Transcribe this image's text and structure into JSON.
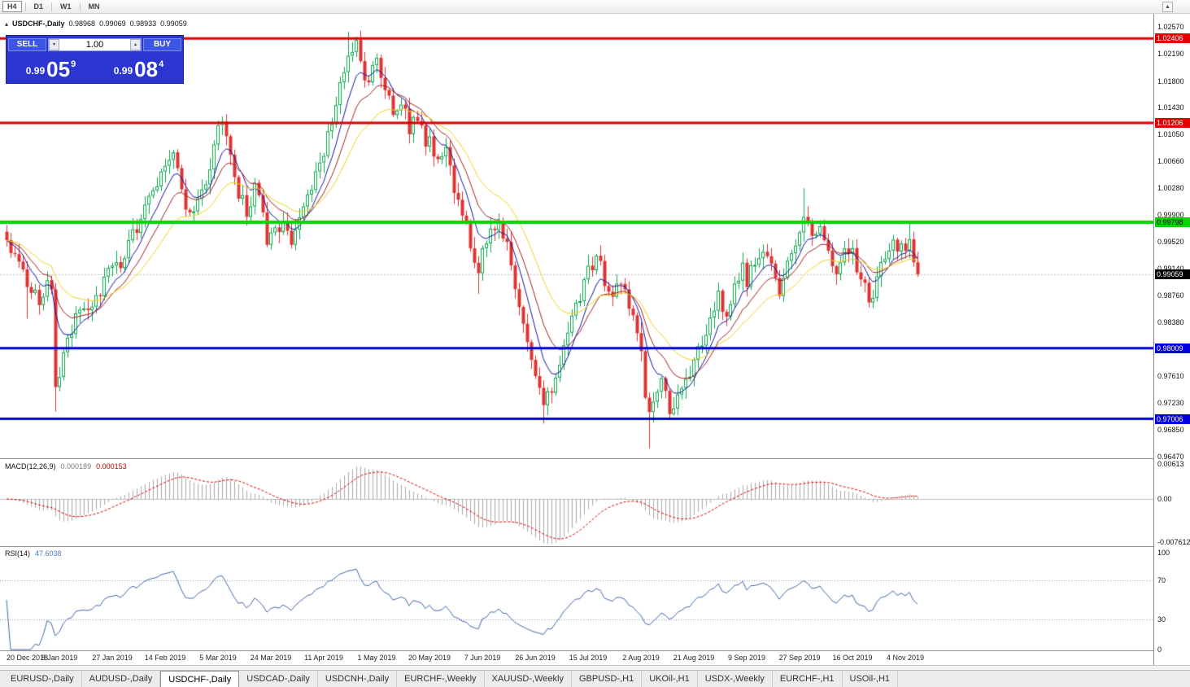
{
  "icons": {
    "panel_toggle_icon": "▴",
    "scroll_up_icon": "▲",
    "spin_down_icon": "▾",
    "spin_up_icon": "▴"
  },
  "toolbar": {
    "timeframes": [
      "H4",
      "D1",
      "W1",
      "MN"
    ],
    "active": "H4"
  },
  "chart_header": {
    "symbol": "USDCHF-,Daily",
    "open": "0.98968",
    "high": "0.99069",
    "low": "0.98933",
    "close": "0.99059"
  },
  "trade_panel": {
    "sell_label": "SELL",
    "buy_label": "BUY",
    "lot_value": "1.00",
    "sell_price": {
      "prefix": "0.99",
      "big": "05",
      "sup": "9"
    },
    "buy_price": {
      "prefix": "0.99",
      "big": "08",
      "sup": "4"
    }
  },
  "chart_data": {
    "type": "candlestick",
    "title": "USDCHF-,Daily",
    "ohlc_display": {
      "open": "0.98968",
      "high": "0.99069",
      "low": "0.98933",
      "close": "0.99059"
    },
    "n_candles": 225,
    "last_close": 0.99059,
    "anchors": [
      [
        0,
        0.9952
      ],
      [
        2,
        0.9935
      ],
      [
        4,
        0.9902
      ],
      [
        6,
        0.9878
      ],
      [
        8,
        0.9868
      ],
      [
        10,
        0.9898
      ],
      [
        11,
        0.9886
      ],
      [
        12,
        0.9738
      ],
      [
        13,
        0.9768
      ],
      [
        15,
        0.9812
      ],
      [
        17,
        0.9845
      ],
      [
        19,
        0.9862
      ],
      [
        21,
        0.985
      ],
      [
        23,
        0.9882
      ],
      [
        25,
        0.9908
      ],
      [
        26,
        0.9922
      ],
      [
        28,
        0.9908
      ],
      [
        30,
        0.9945
      ],
      [
        32,
        0.9975
      ],
      [
        34,
        0.9998
      ],
      [
        36,
        1.0022
      ],
      [
        38,
        1.0052
      ],
      [
        39,
        1.0062
      ],
      [
        41,
        1.0072
      ],
      [
        43,
        1.0028
      ],
      [
        45,
        0.9988
      ],
      [
        47,
        1.0018
      ],
      [
        49,
        1.0042
      ],
      [
        51,
        1.0085
      ],
      [
        52,
        1.0108
      ],
      [
        53,
        1.0115
      ],
      [
        55,
        1.0068
      ],
      [
        57,
        1.0022
      ],
      [
        59,
        0.9998
      ],
      [
        61,
        1.0028
      ],
      [
        63,
        0.9992
      ],
      [
        64,
        0.9948
      ],
      [
        66,
        0.9962
      ],
      [
        68,
        0.9978
      ],
      [
        70,
        0.9952
      ],
      [
        72,
        0.9988
      ],
      [
        74,
        1.0012
      ],
      [
        76,
        1.0045
      ],
      [
        78,
        1.0082
      ],
      [
        80,
        1.0128
      ],
      [
        82,
        1.0178
      ],
      [
        84,
        1.0218
      ],
      [
        86,
        1.0228
      ],
      [
        88,
        1.0178
      ],
      [
        90,
        1.0198
      ],
      [
        91,
        1.0205
      ],
      [
        93,
        1.0168
      ],
      [
        95,
        1.0132
      ],
      [
        97,
        1.0152
      ],
      [
        99,
        1.0112
      ],
      [
        101,
        1.0128
      ],
      [
        103,
        1.0088
      ],
      [
        104,
        1.0098
      ],
      [
        106,
        1.0062
      ],
      [
        108,
        1.0078
      ],
      [
        110,
        1.0032
      ],
      [
        112,
        0.9992
      ],
      [
        114,
        0.9952
      ],
      [
        116,
        0.9908
      ],
      [
        117,
        0.9932
      ],
      [
        119,
        0.9962
      ],
      [
        121,
        0.9988
      ],
      [
        123,
        0.9942
      ],
      [
        125,
        0.9892
      ],
      [
        127,
        0.9842
      ],
      [
        129,
        0.9788
      ],
      [
        130,
        0.9758
      ],
      [
        132,
        0.9718
      ],
      [
        134,
        0.9748
      ],
      [
        136,
        0.9788
      ],
      [
        138,
        0.9822
      ],
      [
        140,
        0.9858
      ],
      [
        142,
        0.9892
      ],
      [
        143,
        0.9908
      ],
      [
        145,
        0.9932
      ],
      [
        147,
        0.9898
      ],
      [
        149,
        0.9872
      ],
      [
        151,
        0.9898
      ],
      [
        153,
        0.9862
      ],
      [
        155,
        0.9822
      ],
      [
        156,
        0.9792
      ],
      [
        157,
        0.9738
      ],
      [
        158,
        0.9708
      ],
      [
        159,
        0.9722
      ],
      [
        161,
        0.9748
      ],
      [
        163,
        0.9712
      ],
      [
        165,
        0.9738
      ],
      [
        167,
        0.9762
      ],
      [
        169,
        0.9778
      ],
      [
        171,
        0.9808
      ],
      [
        173,
        0.9842
      ],
      [
        175,
        0.9872
      ],
      [
        177,
        0.9848
      ],
      [
        179,
        0.9882
      ],
      [
        181,
        0.9912
      ],
      [
        182,
        0.9898
      ],
      [
        184,
        0.9928
      ],
      [
        186,
        0.9948
      ],
      [
        188,
        0.9912
      ],
      [
        190,
        0.9882
      ],
      [
        192,
        0.9918
      ],
      [
        194,
        0.9948
      ],
      [
        195,
        0.9968
      ],
      [
        196,
        0.9992
      ],
      [
        198,
        0.9952
      ],
      [
        200,
        0.9978
      ],
      [
        202,
        0.9942
      ],
      [
        204,
        0.9912
      ],
      [
        206,
        0.9948
      ],
      [
        208,
        0.9932
      ],
      [
        210,
        0.9898
      ],
      [
        212,
        0.9868
      ],
      [
        214,
        0.9898
      ],
      [
        216,
        0.9932
      ],
      [
        218,
        0.9948
      ],
      [
        219,
        0.9942
      ],
      [
        220,
        0.9958
      ],
      [
        221,
        0.9948
      ],
      [
        222,
        0.9962
      ],
      [
        223,
        0.9932
      ],
      [
        224,
        0.9906
      ]
    ],
    "wick_overrides": [
      {
        "i": 5,
        "low": 0.9843
      },
      {
        "i": 12,
        "low": 0.9711
      },
      {
        "i": 52,
        "high": 1.0124
      },
      {
        "i": 84,
        "high": 1.025
      },
      {
        "i": 86,
        "high": 1.0243
      },
      {
        "i": 116,
        "low": 0.9878
      },
      {
        "i": 132,
        "low": 0.9694
      },
      {
        "i": 158,
        "low": 0.9659
      },
      {
        "i": 196,
        "high": 1.0028
      },
      {
        "i": 222,
        "high": 0.9978
      }
    ],
    "colors": {
      "up": "#0ba34e",
      "down": "#dd3333",
      "wick_up": "#0ba34e",
      "wick_down": "#dd3333"
    },
    "moving_averages": [
      {
        "name": "fast",
        "period": 7,
        "color": "#1414a0"
      },
      {
        "name": "medium",
        "period": 13,
        "color": "#a02020"
      },
      {
        "name": "slow",
        "period": 24,
        "color": "#f0d020"
      }
    ],
    "y_ticks": [
      "1.02570",
      "1.02190",
      "1.01800",
      "1.01430",
      "1.01050",
      "1.00660",
      "1.00280",
      "0.99900",
      "0.99520",
      "0.99140",
      "0.98760",
      "0.98380",
      "0.97610",
      "0.97230",
      "0.96850",
      "0.96470"
    ],
    "levels": [
      {
        "price": 1.02406,
        "label": "1.02406",
        "color": "#e00000",
        "text_color": "#ffffff",
        "thickness": 3
      },
      {
        "price": 1.01206,
        "label": "1.01206",
        "color": "#e00000",
        "text_color": "#ffffff",
        "thickness": 3
      },
      {
        "price": 0.99798,
        "label": "0.99798",
        "color": "#00d600",
        "text_color": "#000000",
        "thickness": 4
      },
      {
        "price": 0.98009,
        "label": "0.98009",
        "color": "#0000dd",
        "text_color": "#ffffff",
        "thickness": 3
      },
      {
        "price": 0.97006,
        "label": "0.97006",
        "color": "#0000dd",
        "text_color": "#ffffff",
        "thickness": 3
      }
    ],
    "current_price": {
      "value": 0.99059,
      "label": "0.99059",
      "box_color": "#000000",
      "text_color": "#ffffff"
    },
    "x_labels": [
      {
        "i": 0,
        "text": "20 Dec 2018"
      },
      {
        "i": 13,
        "text": "8 Jan 2019"
      },
      {
        "i": 26,
        "text": "27 Jan 2019"
      },
      {
        "i": 39,
        "text": "14 Feb 2019"
      },
      {
        "i": 52,
        "text": "5 Mar 2019"
      },
      {
        "i": 65,
        "text": "24 Mar 2019"
      },
      {
        "i": 78,
        "text": "11 Apr 2019"
      },
      {
        "i": 91,
        "text": "1 May 2019"
      },
      {
        "i": 104,
        "text": "20 May 2019"
      },
      {
        "i": 117,
        "text": "7 Jun 2019"
      },
      {
        "i": 130,
        "text": "26 Jun 2019"
      },
      {
        "i": 143,
        "text": "15 Jul 2019"
      },
      {
        "i": 156,
        "text": "2 Aug 2019"
      },
      {
        "i": 169,
        "text": "21 Aug 2019"
      },
      {
        "i": 182,
        "text": "9 Sep 2019"
      },
      {
        "i": 195,
        "text": "27 Sep 2019"
      },
      {
        "i": 208,
        "text": "16 Oct 2019"
      },
      {
        "i": 221,
        "text": "4 Nov 2019"
      }
    ],
    "macd": {
      "name": "MACD(12,26,9)",
      "main_value": "0.000189",
      "signal_value": "0.000153",
      "axis_labels": [
        "0.00613",
        "0.00",
        "-0.007612"
      ],
      "axis_values": [
        0.00613,
        0,
        -0.007612
      ],
      "hist_color": "#a8a8a8",
      "signal_color": "#e00000"
    },
    "rsi": {
      "name": "RSI(14)",
      "value": "47.6038",
      "line_color": "#4169aa",
      "level_lines": [
        70,
        30
      ],
      "axis_labels": [
        "100",
        "70",
        "30",
        "0"
      ],
      "axis_values": [
        100,
        70,
        30,
        0
      ]
    }
  },
  "tabs": {
    "items": [
      "EURUSD-,Daily",
      "AUDUSD-,Daily",
      "USDCHF-,Daily",
      "USDCAD-,Daily",
      "USDCNH-,Daily",
      "EURCHF-,Weekly",
      "XAUUSD-,Weekly",
      "GBPUSD-,H1",
      "UKOil-,H1",
      "USDX-,Weekly",
      "EURCHF-,H1",
      "USOil-,H1"
    ],
    "active_index": 2
  }
}
